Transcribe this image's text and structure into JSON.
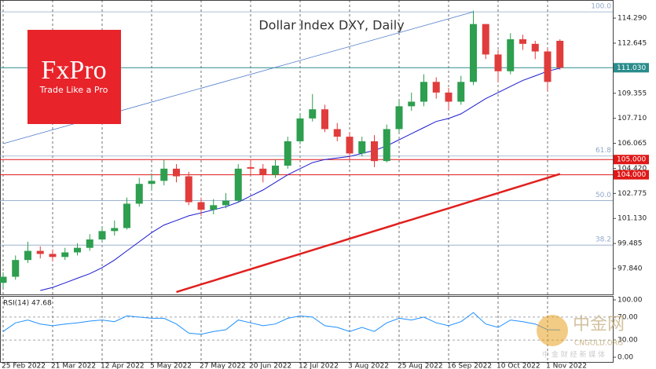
{
  "chart_data": {
    "type": "candlestick",
    "title": "Dollar Index DXY, Daily",
    "categories": [
      "25 Feb 2022",
      null,
      null,
      null,
      "21 Mar 2022",
      null,
      null,
      null,
      "12 Apr 2022",
      null,
      null,
      null,
      "5 May 2022",
      null,
      null,
      null,
      "27 May 2022",
      null,
      null,
      null,
      "20 Jun 2022",
      null,
      null,
      null,
      "12 Jul 2022",
      null,
      null,
      null,
      "3 Aug 2022",
      null,
      null,
      null,
      "25 Aug 2022",
      null,
      null,
      null,
      "16 Sep 2022",
      null,
      null,
      null,
      "10 Oct 2022",
      null,
      null,
      null,
      "1 Nov 2022",
      null
    ],
    "open": [
      96.9,
      97.3,
      98.4,
      99.0,
      98.8,
      98.6,
      98.9,
      99.2,
      99.75,
      100.3,
      100.5,
      102.1,
      103.4,
      103.6,
      104.4,
      103.9,
      102.2,
      101.7,
      102.0,
      102.3,
      104.5,
      104.4,
      104.0,
      104.6,
      106.2,
      107.7,
      108.3,
      107.0,
      106.5,
      105.4,
      106.2,
      104.9,
      107.0,
      108.5,
      108.8,
      110.1,
      109.4,
      108.8,
      110.1,
      113.9,
      111.9,
      110.8,
      112.9,
      112.6,
      112.1,
      112.8
    ],
    "high": [
      97.6,
      98.7,
      99.6,
      99.3,
      99.1,
      99.2,
      99.5,
      100.1,
      100.6,
      101.0,
      102.5,
      103.8,
      104.1,
      105.0,
      104.7,
      104.2,
      102.5,
      102.4,
      102.8,
      104.7,
      105.0,
      104.7,
      105.0,
      106.5,
      108.0,
      109.3,
      108.6,
      107.4,
      106.8,
      106.5,
      106.6,
      107.3,
      108.9,
      109.4,
      110.6,
      110.4,
      109.7,
      110.5,
      114.78,
      113.9,
      112.2,
      113.3,
      113.2,
      112.8,
      112.3,
      112.9
    ],
    "low": [
      96.6,
      97.1,
      98.2,
      98.5,
      98.3,
      98.4,
      98.7,
      99.0,
      99.6,
      100.0,
      100.4,
      101.9,
      103.0,
      103.3,
      103.5,
      102.0,
      101.3,
      101.4,
      101.8,
      102.2,
      104.0,
      103.5,
      103.8,
      104.4,
      106.0,
      107.5,
      106.8,
      106.2,
      105.0,
      105.2,
      104.5,
      104.8,
      106.8,
      108.2,
      108.5,
      109.0,
      108.3,
      108.6,
      109.9,
      111.6,
      110.1,
      110.6,
      112.2,
      111.6,
      109.5,
      110.9
    ],
    "close": [
      97.3,
      98.4,
      99.0,
      98.8,
      98.6,
      98.9,
      99.2,
      99.75,
      100.3,
      100.5,
      102.1,
      103.4,
      103.6,
      104.4,
      103.9,
      102.2,
      101.7,
      102.0,
      102.3,
      104.4,
      104.4,
      104.0,
      104.6,
      106.2,
      107.7,
      108.3,
      107.0,
      106.5,
      105.4,
      106.2,
      104.9,
      107.0,
      108.5,
      108.8,
      110.1,
      109.4,
      108.8,
      110.1,
      113.9,
      111.9,
      110.8,
      112.9,
      112.6,
      112.1,
      110.1,
      111.03
    ],
    "up_color": "#2e9e4f",
    "down_color": "#e03c3c",
    "ylim": [
      96.14,
      115.48
    ],
    "yticks": [
      {
        "value": 114.29,
        "label": "114.290"
      },
      {
        "value": 112.645,
        "label": "112.645"
      },
      {
        "value": 109.355,
        "label": "109.355"
      },
      {
        "value": 107.71,
        "label": "107.710"
      },
      {
        "value": 106.065,
        "label": "106.065"
      },
      {
        "value": 104.42,
        "label": "104.420"
      },
      {
        "value": 102.775,
        "label": "102.775"
      },
      {
        "value": 101.13,
        "label": "101.130"
      },
      {
        "value": 99.485,
        "label": "99.485"
      },
      {
        "value": 97.84,
        "label": "97.840"
      }
    ],
    "grid": true,
    "moving_averages": [
      {
        "color": "#1a1ad0",
        "values": [
          null,
          null,
          null,
          96.4,
          96.6,
          96.9,
          97.2,
          97.5,
          97.9,
          98.4,
          99.0,
          99.6,
          100.2,
          100.7,
          101.0,
          101.3,
          101.5,
          101.7,
          101.9,
          102.2,
          102.6,
          103.0,
          103.5,
          104.0,
          104.4,
          104.8,
          105.0,
          105.1,
          105.2,
          105.4,
          105.6,
          105.9,
          106.3,
          106.7,
          107.1,
          107.5,
          107.7,
          108.0,
          108.5,
          109.0,
          109.4,
          109.8,
          110.2,
          110.5,
          110.8,
          111.0
        ]
      },
      {
        "color": "#e0201e",
        "values": [
          null,
          null,
          null,
          null,
          null,
          null,
          null,
          null,
          null,
          null,
          null,
          null,
          null,
          null,
          96.3,
          96.55,
          96.8,
          97.05,
          97.3,
          97.55,
          97.8,
          98.05,
          98.3,
          98.55,
          98.8,
          99.05,
          99.3,
          99.55,
          99.8,
          100.05,
          100.3,
          100.55,
          100.8,
          101.05,
          101.3,
          101.55,
          101.8,
          102.05,
          102.3,
          102.55,
          102.8,
          103.05,
          103.3,
          103.55,
          103.8,
          104.05
        ]
      }
    ],
    "trendline": {
      "x": [
        0,
        38
      ],
      "values": [
        106.04,
        114.7
      ],
      "color": "#4a78c8"
    },
    "fib_levels": [
      {
        "value": 114.7,
        "label": "100.0"
      },
      {
        "value": 105.23,
        "label": "61.8"
      },
      {
        "value": 102.3,
        "label": "50.0"
      },
      {
        "value": 99.38,
        "label": "38.2"
      }
    ],
    "fib_color": "#8fa8c8",
    "levels": [
      {
        "value": 111.03,
        "label": "111.030",
        "color": "#2a8c8c"
      },
      {
        "value": 105,
        "label": "105.000",
        "color": "#e01818"
      },
      {
        "value": 104,
        "label": "104.000",
        "color": "#e01818"
      }
    ],
    "rsi": {
      "title": "RSI(14) 47.68",
      "color": "#1e90ff",
      "values": [
        45,
        60,
        65,
        58,
        55,
        58,
        60,
        63,
        65,
        62,
        72,
        70,
        68,
        68,
        58,
        42,
        40,
        45,
        48,
        65,
        60,
        55,
        58,
        68,
        72,
        70,
        55,
        52,
        45,
        52,
        45,
        60,
        68,
        65,
        70,
        60,
        55,
        62,
        78,
        58,
        52,
        65,
        62,
        58,
        48,
        47.68
      ],
      "ylim": [
        -9.6,
        105.5
      ],
      "yticks": [
        {
          "value": 100,
          "label": "100.00"
        },
        {
          "value": 70,
          "label": "70.00"
        },
        {
          "value": 30,
          "label": "30.00"
        },
        {
          "value": 0,
          "label": "0.00"
        }
      ]
    }
  },
  "logo": {
    "brand": "FxPro",
    "slogan": "Trade Like a Pro"
  },
  "watermark": {
    "name": "中金网",
    "url": "CNGOLD.ORG",
    "tagline": "中 金 财 经 新 媒 体"
  }
}
